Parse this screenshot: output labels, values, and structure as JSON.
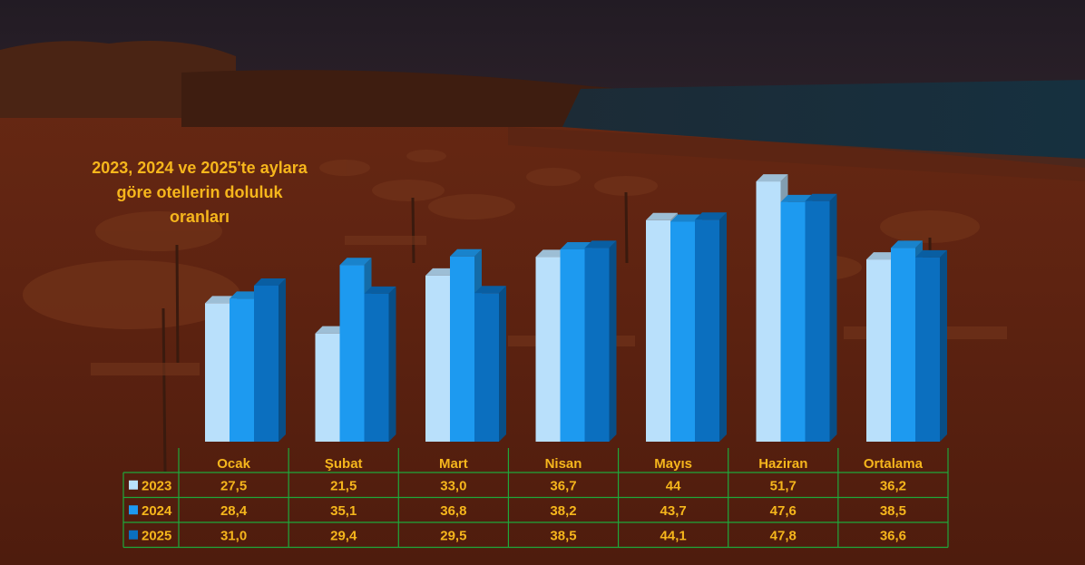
{
  "colors": {
    "y2023": "#b9e0fb",
    "y2024": "#1d9af0",
    "y2025": "#0b6fbf",
    "text": "#f6b61c",
    "grid": "#1fa83a"
  },
  "chart_data": {
    "type": "bar",
    "title": "2023, 2024 ve 2025'te aylara göre otellerin doluluk oranları",
    "categories": [
      "Ocak",
      "Şubat",
      "Mart",
      "Nisan",
      "Mayıs",
      "Haziran",
      "Ortalama"
    ],
    "series": [
      {
        "name": "2023",
        "values": [
          27.5,
          21.5,
          33.0,
          36.7,
          44,
          51.7,
          36.2
        ],
        "labels": [
          "27,5",
          "21,5",
          "33,0",
          "36,7",
          "44",
          "51,7",
          "36,2"
        ]
      },
      {
        "name": "2024",
        "values": [
          28.4,
          35.1,
          36.8,
          38.2,
          43.7,
          47.6,
          38.5
        ],
        "labels": [
          "28,4",
          "35,1",
          "36,8",
          "38,2",
          "43,7",
          "47,6",
          "38,5"
        ]
      },
      {
        "name": "2025",
        "values": [
          31.0,
          29.4,
          29.5,
          38.5,
          44.1,
          47.8,
          36.6
        ],
        "labels": [
          "31,0",
          "29,4",
          "29,5",
          "38,5",
          "44,1",
          "47,8",
          "36,6"
        ]
      }
    ],
    "ylim": [
      0,
      55
    ],
    "grid": false,
    "legend": "data-table"
  }
}
